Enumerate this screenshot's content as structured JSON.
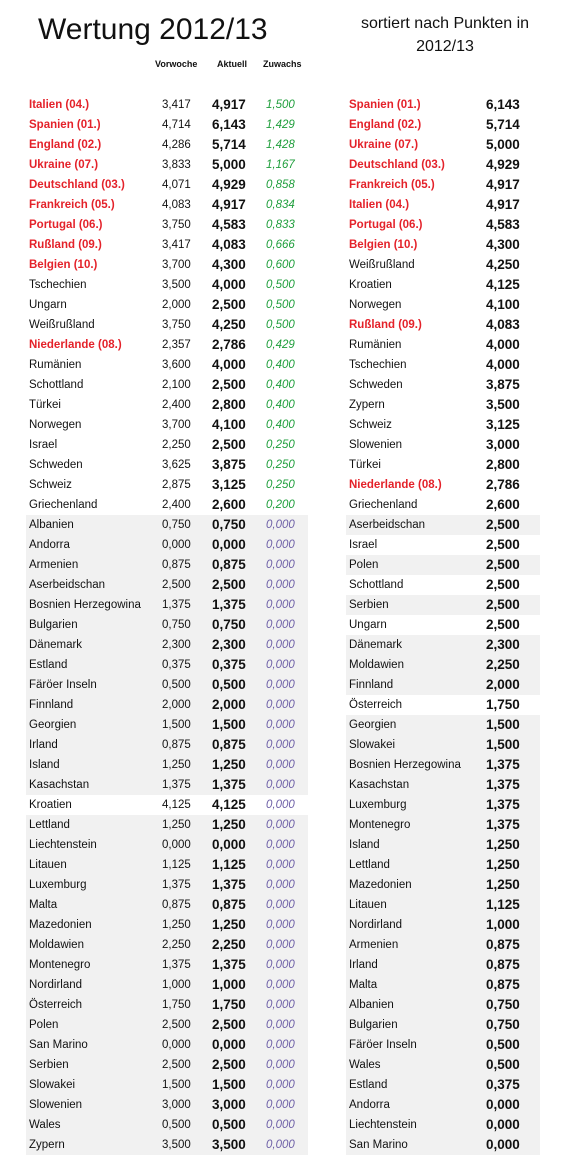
{
  "title": "Wertung 2012/13",
  "subtitle_line1": "sortiert nach Punkten in",
  "subtitle_line2": "2012/13",
  "headers": {
    "prev": "Vorwoche",
    "cur": "Aktuell",
    "gain": "Zuwachs"
  },
  "colors": {
    "highlight": "#e4222a",
    "positive_gain": "#1f9e3c",
    "zero_gain": "#6f61a8",
    "shade": "#f1f1f1"
  },
  "left_rows": [
    {
      "name": "Italien (04.)",
      "prev": "3,417",
      "cur": "4,917",
      "gain": "1,500",
      "hl": true,
      "shade": false
    },
    {
      "name": "Spanien (01.)",
      "prev": "4,714",
      "cur": "6,143",
      "gain": "1,429",
      "hl": true,
      "shade": false
    },
    {
      "name": "England (02.)",
      "prev": "4,286",
      "cur": "5,714",
      "gain": "1,428",
      "hl": true,
      "shade": false
    },
    {
      "name": "Ukraine (07.)",
      "prev": "3,833",
      "cur": "5,000",
      "gain": "1,167",
      "hl": true,
      "shade": false
    },
    {
      "name": "Deutschland (03.)",
      "prev": "4,071",
      "cur": "4,929",
      "gain": "0,858",
      "hl": true,
      "shade": false
    },
    {
      "name": "Frankreich (05.)",
      "prev": "4,083",
      "cur": "4,917",
      "gain": "0,834",
      "hl": true,
      "shade": false
    },
    {
      "name": "Portugal (06.)",
      "prev": "3,750",
      "cur": "4,583",
      "gain": "0,833",
      "hl": true,
      "shade": false
    },
    {
      "name": "Rußland (09.)",
      "prev": "3,417",
      "cur": "4,083",
      "gain": "0,666",
      "hl": true,
      "shade": false
    },
    {
      "name": "Belgien (10.)",
      "prev": "3,700",
      "cur": "4,300",
      "gain": "0,600",
      "hl": true,
      "shade": false
    },
    {
      "name": "Tschechien",
      "prev": "3,500",
      "cur": "4,000",
      "gain": "0,500",
      "hl": false,
      "shade": false
    },
    {
      "name": "Ungarn",
      "prev": "2,000",
      "cur": "2,500",
      "gain": "0,500",
      "hl": false,
      "shade": false
    },
    {
      "name": "Weißrußland",
      "prev": "3,750",
      "cur": "4,250",
      "gain": "0,500",
      "hl": false,
      "shade": false
    },
    {
      "name": "Niederlande (08.)",
      "prev": "2,357",
      "cur": "2,786",
      "gain": "0,429",
      "hl": true,
      "shade": false
    },
    {
      "name": "Rumänien",
      "prev": "3,600",
      "cur": "4,000",
      "gain": "0,400",
      "hl": false,
      "shade": false
    },
    {
      "name": "Schottland",
      "prev": "2,100",
      "cur": "2,500",
      "gain": "0,400",
      "hl": false,
      "shade": false
    },
    {
      "name": "Türkei",
      "prev": "2,400",
      "cur": "2,800",
      "gain": "0,400",
      "hl": false,
      "shade": false
    },
    {
      "name": "Norwegen",
      "prev": "3,700",
      "cur": "4,100",
      "gain": "0,400",
      "hl": false,
      "shade": false
    },
    {
      "name": "Israel",
      "prev": "2,250",
      "cur": "2,500",
      "gain": "0,250",
      "hl": false,
      "shade": false
    },
    {
      "name": "Schweden",
      "prev": "3,625",
      "cur": "3,875",
      "gain": "0,250",
      "hl": false,
      "shade": false
    },
    {
      "name": "Schweiz",
      "prev": "2,875",
      "cur": "3,125",
      "gain": "0,250",
      "hl": false,
      "shade": false
    },
    {
      "name": "Griechenland",
      "prev": "2,400",
      "cur": "2,600",
      "gain": "0,200",
      "hl": false,
      "shade": false
    },
    {
      "name": "Albanien",
      "prev": "0,750",
      "cur": "0,750",
      "gain": "0,000",
      "hl": false,
      "shade": true
    },
    {
      "name": "Andorra",
      "prev": "0,000",
      "cur": "0,000",
      "gain": "0,000",
      "hl": false,
      "shade": true
    },
    {
      "name": "Armenien",
      "prev": "0,875",
      "cur": "0,875",
      "gain": "0,000",
      "hl": false,
      "shade": true
    },
    {
      "name": "Aserbeidschan",
      "prev": "2,500",
      "cur": "2,500",
      "gain": "0,000",
      "hl": false,
      "shade": true
    },
    {
      "name": "Bosnien Herzegowina",
      "prev": "1,375",
      "cur": "1,375",
      "gain": "0,000",
      "hl": false,
      "shade": true
    },
    {
      "name": "Bulgarien",
      "prev": "0,750",
      "cur": "0,750",
      "gain": "0,000",
      "hl": false,
      "shade": true
    },
    {
      "name": "Dänemark",
      "prev": "2,300",
      "cur": "2,300",
      "gain": "0,000",
      "hl": false,
      "shade": true
    },
    {
      "name": "Estland",
      "prev": "0,375",
      "cur": "0,375",
      "gain": "0,000",
      "hl": false,
      "shade": true
    },
    {
      "name": "Färöer Inseln",
      "prev": "0,500",
      "cur": "0,500",
      "gain": "0,000",
      "hl": false,
      "shade": true
    },
    {
      "name": "Finnland",
      "prev": "2,000",
      "cur": "2,000",
      "gain": "0,000",
      "hl": false,
      "shade": true
    },
    {
      "name": "Georgien",
      "prev": "1,500",
      "cur": "1,500",
      "gain": "0,000",
      "hl": false,
      "shade": true
    },
    {
      "name": "Irland",
      "prev": "0,875",
      "cur": "0,875",
      "gain": "0,000",
      "hl": false,
      "shade": true
    },
    {
      "name": "Island",
      "prev": "1,250",
      "cur": "1,250",
      "gain": "0,000",
      "hl": false,
      "shade": true
    },
    {
      "name": "Kasachstan",
      "prev": "1,375",
      "cur": "1,375",
      "gain": "0,000",
      "hl": false,
      "shade": true
    },
    {
      "name": "Kroatien",
      "prev": "4,125",
      "cur": "4,125",
      "gain": "0,000",
      "hl": false,
      "shade": false
    },
    {
      "name": "Lettland",
      "prev": "1,250",
      "cur": "1,250",
      "gain": "0,000",
      "hl": false,
      "shade": true
    },
    {
      "name": "Liechtenstein",
      "prev": "0,000",
      "cur": "0,000",
      "gain": "0,000",
      "hl": false,
      "shade": true
    },
    {
      "name": "Litauen",
      "prev": "1,125",
      "cur": "1,125",
      "gain": "0,000",
      "hl": false,
      "shade": true
    },
    {
      "name": "Luxemburg",
      "prev": "1,375",
      "cur": "1,375",
      "gain": "0,000",
      "hl": false,
      "shade": true
    },
    {
      "name": "Malta",
      "prev": "0,875",
      "cur": "0,875",
      "gain": "0,000",
      "hl": false,
      "shade": true
    },
    {
      "name": "Mazedonien",
      "prev": "1,250",
      "cur": "1,250",
      "gain": "0,000",
      "hl": false,
      "shade": true
    },
    {
      "name": "Moldawien",
      "prev": "2,250",
      "cur": "2,250",
      "gain": "0,000",
      "hl": false,
      "shade": true
    },
    {
      "name": "Montenegro",
      "prev": "1,375",
      "cur": "1,375",
      "gain": "0,000",
      "hl": false,
      "shade": true
    },
    {
      "name": "Nordirland",
      "prev": "1,000",
      "cur": "1,000",
      "gain": "0,000",
      "hl": false,
      "shade": true
    },
    {
      "name": "Österreich",
      "prev": "1,750",
      "cur": "1,750",
      "gain": "0,000",
      "hl": false,
      "shade": true
    },
    {
      "name": "Polen",
      "prev": "2,500",
      "cur": "2,500",
      "gain": "0,000",
      "hl": false,
      "shade": true
    },
    {
      "name": "San Marino",
      "prev": "0,000",
      "cur": "0,000",
      "gain": "0,000",
      "hl": false,
      "shade": true
    },
    {
      "name": "Serbien",
      "prev": "2,500",
      "cur": "2,500",
      "gain": "0,000",
      "hl": false,
      "shade": true
    },
    {
      "name": "Slowakei",
      "prev": "1,500",
      "cur": "1,500",
      "gain": "0,000",
      "hl": false,
      "shade": true
    },
    {
      "name": "Slowenien",
      "prev": "3,000",
      "cur": "3,000",
      "gain": "0,000",
      "hl": false,
      "shade": true
    },
    {
      "name": "Wales",
      "prev": "0,500",
      "cur": "0,500",
      "gain": "0,000",
      "hl": false,
      "shade": true
    },
    {
      "name": "Zypern",
      "prev": "3,500",
      "cur": "3,500",
      "gain": "0,000",
      "hl": false,
      "shade": true
    }
  ],
  "right_rows": [
    {
      "name": "Spanien (01.)",
      "pts": "6,143",
      "hl": true,
      "shade": false
    },
    {
      "name": "England (02.)",
      "pts": "5,714",
      "hl": true,
      "shade": false
    },
    {
      "name": "Ukraine (07.)",
      "pts": "5,000",
      "hl": true,
      "shade": false
    },
    {
      "name": "Deutschland (03.)",
      "pts": "4,929",
      "hl": true,
      "shade": false
    },
    {
      "name": "Frankreich (05.)",
      "pts": "4,917",
      "hl": true,
      "shade": false
    },
    {
      "name": "Italien (04.)",
      "pts": "4,917",
      "hl": true,
      "shade": false
    },
    {
      "name": "Portugal (06.)",
      "pts": "4,583",
      "hl": true,
      "shade": false
    },
    {
      "name": "Belgien (10.)",
      "pts": "4,300",
      "hl": true,
      "shade": false
    },
    {
      "name": "Weißrußland",
      "pts": "4,250",
      "hl": false,
      "shade": false
    },
    {
      "name": "Kroatien",
      "pts": "4,125",
      "hl": false,
      "shade": false
    },
    {
      "name": "Norwegen",
      "pts": "4,100",
      "hl": false,
      "shade": false
    },
    {
      "name": "Rußland (09.)",
      "pts": "4,083",
      "hl": true,
      "shade": false
    },
    {
      "name": "Rumänien",
      "pts": "4,000",
      "hl": false,
      "shade": false
    },
    {
      "name": "Tschechien",
      "pts": "4,000",
      "hl": false,
      "shade": false
    },
    {
      "name": "Schweden",
      "pts": "3,875",
      "hl": false,
      "shade": false
    },
    {
      "name": "Zypern",
      "pts": "3,500",
      "hl": false,
      "shade": false
    },
    {
      "name": "Schweiz",
      "pts": "3,125",
      "hl": false,
      "shade": false
    },
    {
      "name": "Slowenien",
      "pts": "3,000",
      "hl": false,
      "shade": false
    },
    {
      "name": "Türkei",
      "pts": "2,800",
      "hl": false,
      "shade": false
    },
    {
      "name": "Niederlande (08.)",
      "pts": "2,786",
      "hl": true,
      "shade": false
    },
    {
      "name": "Griechenland",
      "pts": "2,600",
      "hl": false,
      "shade": false
    },
    {
      "name": "Aserbeidschan",
      "pts": "2,500",
      "hl": false,
      "shade": true
    },
    {
      "name": "Israel",
      "pts": "2,500",
      "hl": false,
      "shade": false
    },
    {
      "name": "Polen",
      "pts": "2,500",
      "hl": false,
      "shade": true
    },
    {
      "name": "Schottland",
      "pts": "2,500",
      "hl": false,
      "shade": false
    },
    {
      "name": "Serbien",
      "pts": "2,500",
      "hl": false,
      "shade": true
    },
    {
      "name": "Ungarn",
      "pts": "2,500",
      "hl": false,
      "shade": false
    },
    {
      "name": "Dänemark",
      "pts": "2,300",
      "hl": false,
      "shade": true
    },
    {
      "name": "Moldawien",
      "pts": "2,250",
      "hl": false,
      "shade": true
    },
    {
      "name": "Finnland",
      "pts": "2,000",
      "hl": false,
      "shade": true
    },
    {
      "name": "Österreich",
      "pts": "1,750",
      "hl": false,
      "shade": false
    },
    {
      "name": "Georgien",
      "pts": "1,500",
      "hl": false,
      "shade": true
    },
    {
      "name": "Slowakei",
      "pts": "1,500",
      "hl": false,
      "shade": true
    },
    {
      "name": "Bosnien Herzegowina",
      "pts": "1,375",
      "hl": false,
      "shade": true
    },
    {
      "name": "Kasachstan",
      "pts": "1,375",
      "hl": false,
      "shade": true
    },
    {
      "name": "Luxemburg",
      "pts": "1,375",
      "hl": false,
      "shade": true
    },
    {
      "name": "Montenegro",
      "pts": "1,375",
      "hl": false,
      "shade": true
    },
    {
      "name": "Island",
      "pts": "1,250",
      "hl": false,
      "shade": true
    },
    {
      "name": "Lettland",
      "pts": "1,250",
      "hl": false,
      "shade": true
    },
    {
      "name": "Mazedonien",
      "pts": "1,250",
      "hl": false,
      "shade": true
    },
    {
      "name": "Litauen",
      "pts": "1,125",
      "hl": false,
      "shade": true
    },
    {
      "name": "Nordirland",
      "pts": "1,000",
      "hl": false,
      "shade": true
    },
    {
      "name": "Armenien",
      "pts": "0,875",
      "hl": false,
      "shade": true
    },
    {
      "name": "Irland",
      "pts": "0,875",
      "hl": false,
      "shade": true
    },
    {
      "name": "Malta",
      "pts": "0,875",
      "hl": false,
      "shade": true
    },
    {
      "name": "Albanien",
      "pts": "0,750",
      "hl": false,
      "shade": true
    },
    {
      "name": "Bulgarien",
      "pts": "0,750",
      "hl": false,
      "shade": true
    },
    {
      "name": "Färöer Inseln",
      "pts": "0,500",
      "hl": false,
      "shade": true
    },
    {
      "name": "Wales",
      "pts": "0,500",
      "hl": false,
      "shade": true
    },
    {
      "name": "Estland",
      "pts": "0,375",
      "hl": false,
      "shade": true
    },
    {
      "name": "Andorra",
      "pts": "0,000",
      "hl": false,
      "shade": true
    },
    {
      "name": "Liechtenstein",
      "pts": "0,000",
      "hl": false,
      "shade": true
    },
    {
      "name": "San Marino",
      "pts": "0,000",
      "hl": false,
      "shade": true
    }
  ]
}
